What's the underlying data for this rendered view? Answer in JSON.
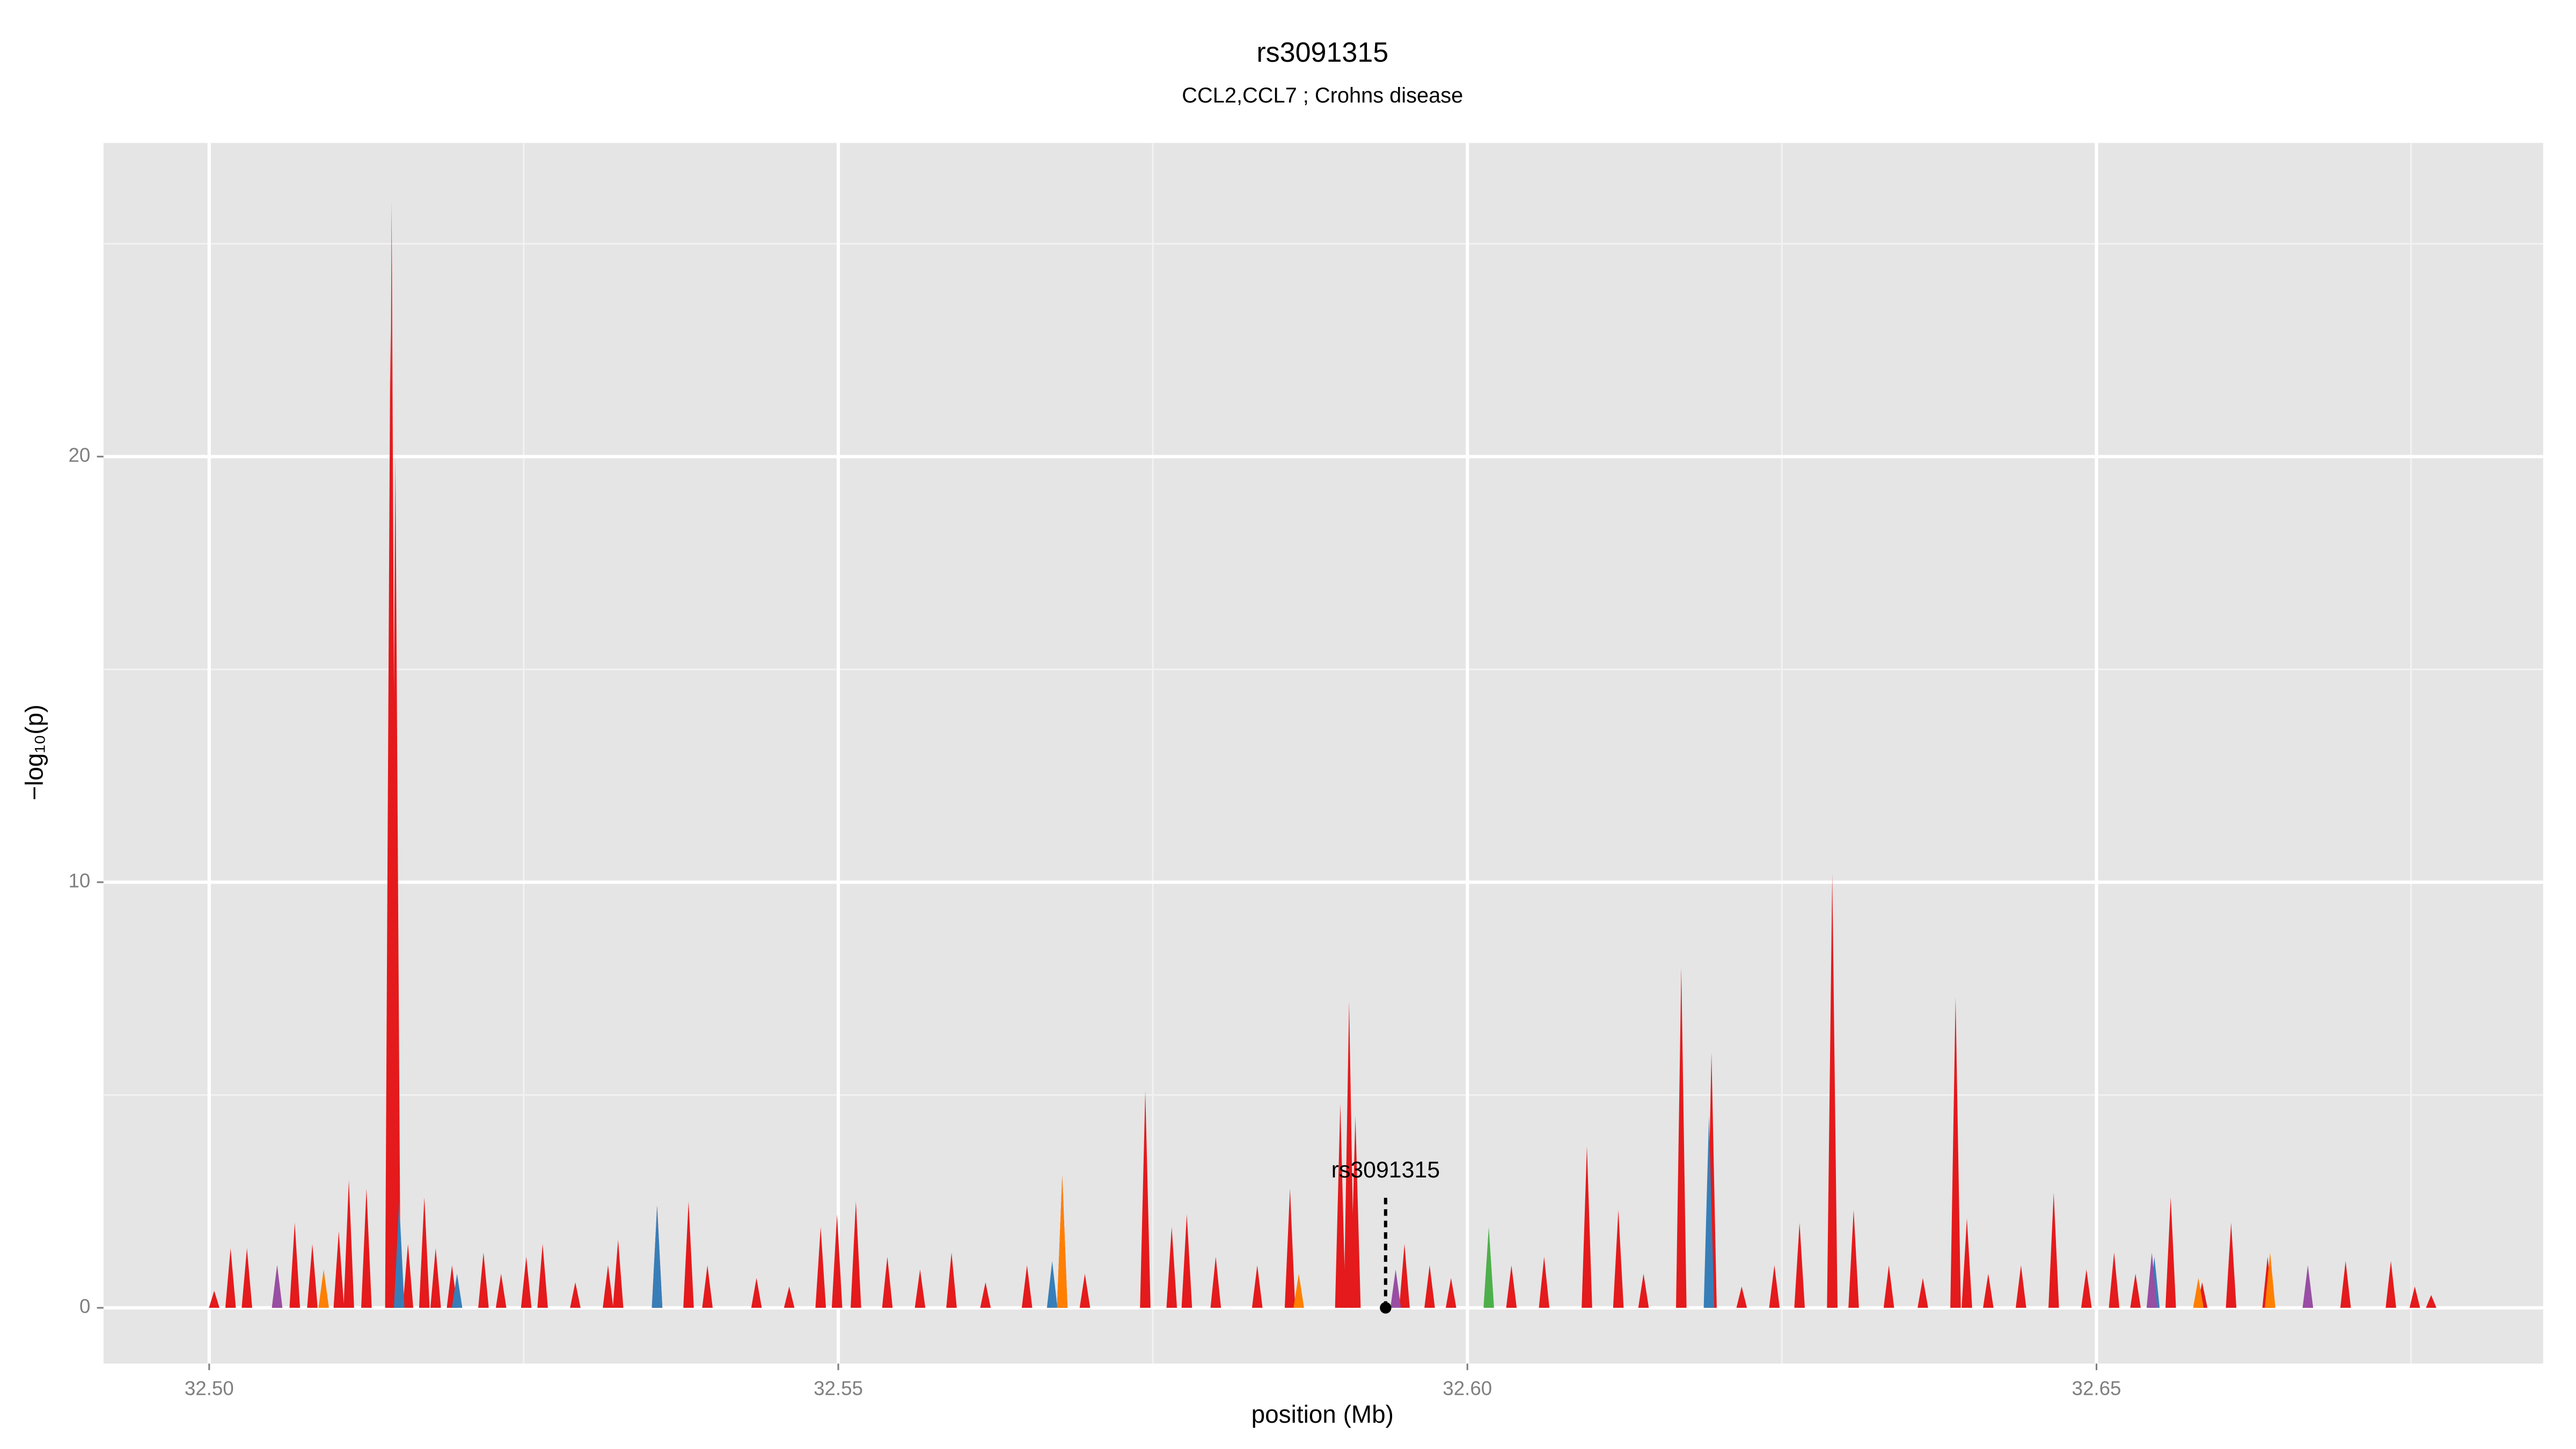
{
  "chart_data": {
    "type": "area",
    "title": "rs3091315",
    "subtitle": "CCL2,CCL7 ; Crohns disease",
    "x_label": "position (Mb)",
    "y_label": "−log₁₀(p)",
    "xlim": [
      32.4916,
      32.6855
    ],
    "ylim": [
      -1.31,
      27.37
    ],
    "xticks": [
      {
        "value": 32.5,
        "label": "32.50"
      },
      {
        "value": 32.55,
        "label": "32.55"
      },
      {
        "value": 32.6,
        "label": "32.60"
      },
      {
        "value": 32.65,
        "label": "32.65"
      }
    ],
    "yticks": [
      0,
      10,
      20
    ],
    "x_minor_ticks": [
      32.525,
      32.575,
      32.625,
      32.675
    ],
    "y_minor_ticks": [
      5,
      15,
      25
    ],
    "grid": true,
    "series": [
      {
        "color": "#e41a1c",
        "x": [
          32.5004,
          32.5017,
          32.503,
          32.5054,
          32.5068,
          32.5082,
          32.5103,
          32.5111,
          32.5125,
          32.5144,
          32.5145,
          32.5148,
          32.5158,
          32.5171,
          32.518,
          32.5193,
          32.5218,
          32.5232,
          32.5252,
          32.5265,
          32.5291,
          32.5317,
          32.5325,
          32.5356,
          32.5381,
          32.5396,
          32.5435,
          32.5461,
          32.5486,
          32.5499,
          32.5514,
          32.5539,
          32.5565,
          32.559,
          32.5617,
          32.565,
          32.5678,
          32.5696,
          32.5744,
          32.5765,
          32.5777,
          32.58,
          32.5833,
          32.5859,
          32.5899,
          32.5906,
          32.5911,
          32.595,
          32.597,
          32.5987,
          32.6035,
          32.6061,
          32.6095,
          32.612,
          32.614,
          32.617,
          32.6194,
          32.6218,
          32.6244,
          32.6264,
          32.629,
          32.6307,
          32.6335,
          32.6362,
          32.6388,
          32.6397,
          32.6414,
          32.644,
          32.6466,
          32.6492,
          32.6514,
          32.6531,
          32.6559,
          32.6584,
          32.6607,
          32.6636,
          32.6668,
          32.6698,
          32.6734,
          32.6753,
          32.6766
        ],
        "values": [
          0.4,
          1.4,
          1.4,
          1.0,
          2.0,
          1.5,
          1.8,
          3.0,
          2.8,
          23,
          26,
          20,
          1.5,
          2.6,
          1.4,
          1.0,
          1.3,
          0.8,
          1.2,
          1.5,
          0.6,
          1.0,
          1.6,
          2.4,
          2.5,
          1.0,
          0.7,
          0.5,
          1.9,
          2.2,
          2.5,
          1.2,
          0.9,
          1.3,
          0.6,
          1.0,
          3.1,
          0.8,
          5.1,
          1.9,
          2.2,
          1.2,
          1.0,
          2.8,
          4.8,
          7.2,
          4.5,
          1.5,
          1.0,
          0.7,
          1.0,
          1.2,
          3.8,
          2.3,
          0.8,
          8.0,
          6.0,
          0.5,
          1.0,
          2.0,
          10.2,
          2.3,
          1.0,
          0.7,
          7.3,
          2.1,
          0.8,
          1.0,
          2.7,
          0.9,
          1.3,
          0.8,
          2.6,
          0.6,
          2.0,
          1.2,
          0.9,
          1.1,
          1.1,
          0.5,
          0.3
        ]
      },
      {
        "color": "#377eb8",
        "x": [
          32.5151,
          32.5197,
          32.5356,
          32.567,
          32.6192,
          32.6546
        ],
        "values": [
          2.5,
          0.8,
          2.4,
          1.1,
          4.5,
          1.2
        ]
      },
      {
        "color": "#ff7f00",
        "x": [
          32.5091,
          32.5678,
          32.5866,
          32.6581,
          32.6638
        ],
        "values": [
          0.9,
          3.1,
          0.8,
          0.7,
          1.3
        ]
      },
      {
        "color": "#984ea3",
        "x": [
          32.5054,
          32.5943,
          32.6544,
          32.6668
        ],
        "values": [
          1.0,
          0.9,
          1.3,
          1.0
        ]
      },
      {
        "color": "#4daf4a",
        "x": [
          32.6017
        ],
        "values": [
          1.9
        ]
      }
    ],
    "annotation": {
      "text": "rs3091315",
      "x": 32.5935,
      "y": 0
    }
  }
}
